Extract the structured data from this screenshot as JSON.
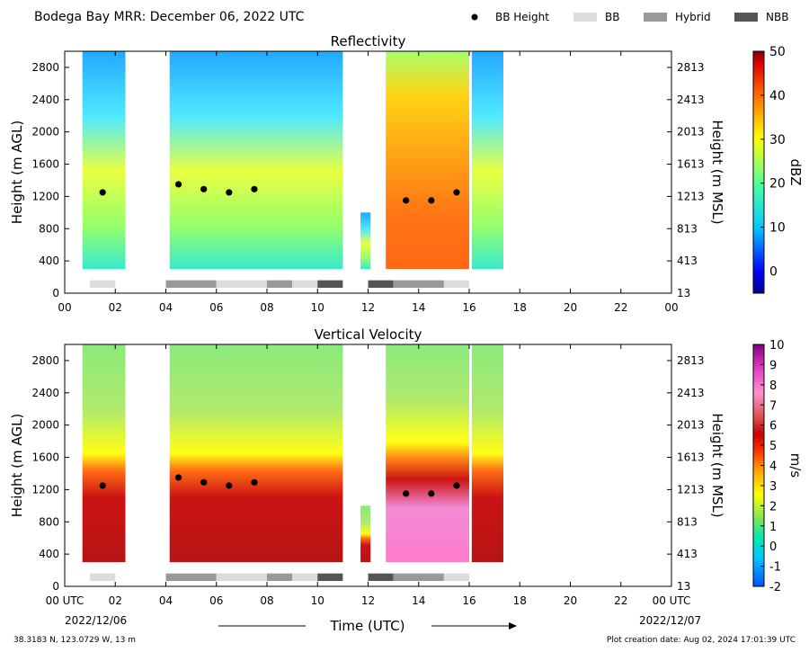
{
  "header": {
    "title": "Bodega Bay MRR:  December 06, 2022 UTC",
    "legend": [
      {
        "label": "BB Height",
        "type": "dot",
        "color": "#000000"
      },
      {
        "label": "BB",
        "type": "box",
        "color": "#dcdcdc"
      },
      {
        "label": "Hybrid",
        "type": "box",
        "color": "#999999"
      },
      {
        "label": "NBB",
        "type": "box",
        "color": "#555555"
      }
    ]
  },
  "footer": {
    "location": "38.3183 N, 123.0729 W, 13 m",
    "created": "Plot creation date: Aug 02, 2024 17:01:39 UTC",
    "time_label": "Time (UTC)",
    "start_date": "2022/12/06",
    "end_date": "2022/12/07"
  },
  "chart_data": [
    {
      "type": "heatmap",
      "title": "Reflectivity",
      "ylabel": "Height (m AGL)",
      "y2label": "Height (m MSL)",
      "xlim": [
        0,
        24
      ],
      "ylim": [
        0,
        3000
      ],
      "x_ticks": [
        "00",
        "02",
        "04",
        "06",
        "08",
        "10",
        "12",
        "14",
        "16",
        "18",
        "20",
        "22",
        "00"
      ],
      "y_ticks": [
        0,
        400,
        800,
        1200,
        1600,
        2000,
        2400,
        2800
      ],
      "y2_ticks": [
        13,
        413,
        813,
        1213,
        1613,
        2013,
        2413,
        2813
      ],
      "colorbar": {
        "label": "dBZ",
        "min": -5,
        "max": 50,
        "ticks": [
          0,
          10,
          20,
          30,
          40,
          50
        ],
        "scheme": "reflectivity"
      },
      "bb_height": [
        {
          "x": 1.5,
          "y": 1250
        },
        {
          "x": 4.5,
          "y": 1350
        },
        {
          "x": 5.5,
          "y": 1290
        },
        {
          "x": 6.5,
          "y": 1250
        },
        {
          "x": 7.5,
          "y": 1290
        },
        {
          "x": 13.5,
          "y": 1150
        },
        {
          "x": 14.5,
          "y": 1150
        },
        {
          "x": 15.5,
          "y": 1250
        }
      ],
      "rain_type": [
        {
          "start": 1,
          "end": 2,
          "type": "BB"
        },
        {
          "start": 4,
          "end": 6,
          "type": "Hybrid"
        },
        {
          "start": 6,
          "end": 8,
          "type": "BB"
        },
        {
          "start": 8,
          "end": 9,
          "type": "Hybrid"
        },
        {
          "start": 9,
          "end": 10,
          "type": "BB"
        },
        {
          "start": 10,
          "end": 11,
          "type": "NBB"
        },
        {
          "start": 12,
          "end": 13,
          "type": "NBB"
        },
        {
          "start": 13,
          "end": 15,
          "type": "Hybrid"
        },
        {
          "start": 15,
          "end": 16,
          "type": "BB"
        }
      ]
    },
    {
      "type": "heatmap",
      "title": "Vertical Velocity",
      "ylabel": "Height (m AGL)",
      "y2label": "Height (m MSL)",
      "xlim": [
        0,
        24
      ],
      "ylim": [
        0,
        3000
      ],
      "x_ticks": [
        "00 UTC",
        "02",
        "04",
        "06",
        "08",
        "10",
        "12",
        "14",
        "16",
        "18",
        "20",
        "22",
        "00 UTC"
      ],
      "y_ticks": [
        0,
        400,
        800,
        1200,
        1600,
        2000,
        2400,
        2800
      ],
      "y2_ticks": [
        13,
        413,
        813,
        1213,
        1613,
        2013,
        2413,
        2813
      ],
      "colorbar": {
        "label": "m/s",
        "min": -2,
        "max": 10,
        "ticks": [
          -2,
          -1,
          0,
          1,
          2,
          3,
          4,
          5,
          6,
          7,
          8,
          9,
          10
        ],
        "scheme": "velocity"
      },
      "bb_height": [
        {
          "x": 1.5,
          "y": 1250
        },
        {
          "x": 4.5,
          "y": 1350
        },
        {
          "x": 5.5,
          "y": 1290
        },
        {
          "x": 6.5,
          "y": 1250
        },
        {
          "x": 7.5,
          "y": 1290
        },
        {
          "x": 13.5,
          "y": 1150
        },
        {
          "x": 14.5,
          "y": 1150
        },
        {
          "x": 15.5,
          "y": 1250
        }
      ],
      "rain_type": [
        {
          "start": 1,
          "end": 2,
          "type": "BB"
        },
        {
          "start": 4,
          "end": 6,
          "type": "Hybrid"
        },
        {
          "start": 6,
          "end": 8,
          "type": "BB"
        },
        {
          "start": 8,
          "end": 9,
          "type": "Hybrid"
        },
        {
          "start": 9,
          "end": 10,
          "type": "BB"
        },
        {
          "start": 10,
          "end": 11,
          "type": "NBB"
        },
        {
          "start": 12,
          "end": 13,
          "type": "NBB"
        },
        {
          "start": 13,
          "end": 15,
          "type": "Hybrid"
        },
        {
          "start": 15,
          "end": 16,
          "type": "BB"
        }
      ]
    }
  ],
  "rain_episodes": [
    {
      "start": 0.7,
      "end": 2.4
    },
    {
      "start": 4.15,
      "end": 11.0
    },
    {
      "start": 11.7,
      "end": 12.1
    },
    {
      "start": 12.7,
      "end": 16.0
    },
    {
      "start": 16.1,
      "end": 17.35
    }
  ],
  "colors": {
    "BB": "#dcdcdc",
    "Hybrid": "#999999",
    "NBB": "#555555",
    "bb_dot": "#000000"
  }
}
